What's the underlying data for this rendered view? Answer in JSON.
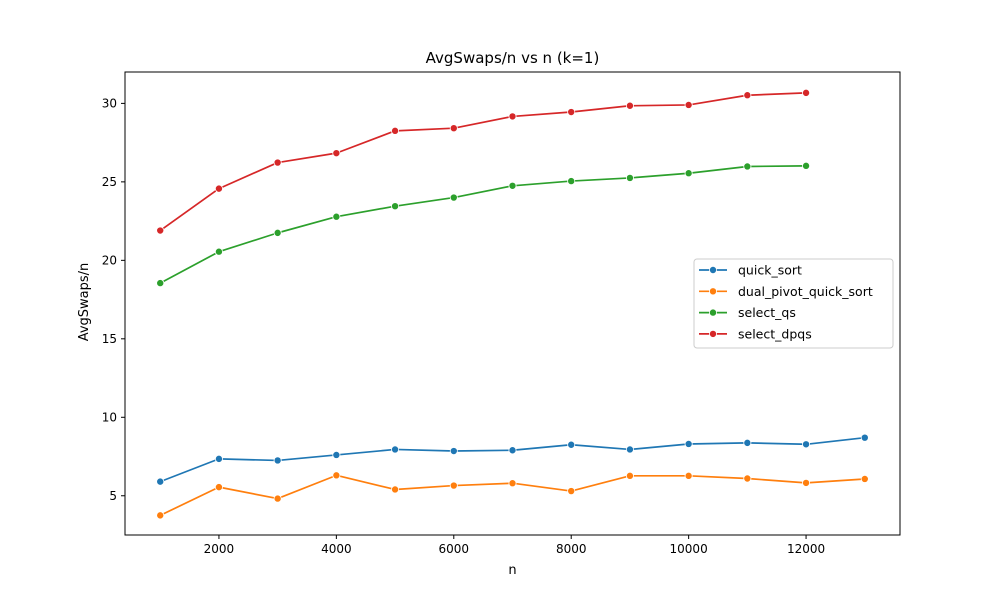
{
  "chart_data": {
    "type": "line",
    "title": "AvgSwaps/n vs n (k=1)",
    "xlabel": "n",
    "ylabel": "AvgSwaps/n",
    "xlim": [
      400,
      13600
    ],
    "ylim": [
      2.5,
      32
    ],
    "xticks": [
      2000,
      4000,
      6000,
      8000,
      10000,
      12000
    ],
    "yticks": [
      5,
      10,
      15,
      20,
      25,
      30
    ],
    "grid": false,
    "legend_position": "center-right",
    "series": [
      {
        "name": "quick_sort",
        "color": "#1f77b4",
        "marker": "circle",
        "x": [
          1000,
          2000,
          3000,
          4000,
          5000,
          6000,
          7000,
          8000,
          9000,
          10000,
          11000,
          12000,
          13000
        ],
        "y": [
          5.9,
          7.35,
          7.25,
          7.6,
          7.95,
          7.85,
          7.9,
          8.25,
          7.95,
          8.3,
          8.37,
          8.28,
          8.7
        ]
      },
      {
        "name": "dual_pivot_quick_sort",
        "color": "#ff7f0e",
        "marker": "circle",
        "x": [
          1000,
          2000,
          3000,
          4000,
          5000,
          6000,
          7000,
          8000,
          9000,
          10000,
          11000,
          12000,
          13000
        ],
        "y": [
          3.75,
          5.55,
          4.82,
          6.3,
          5.4,
          5.65,
          5.8,
          5.3,
          6.27,
          6.27,
          6.1,
          5.82,
          6.07
        ]
      },
      {
        "name": "select_qs",
        "color": "#2ca02c",
        "marker": "circle",
        "x": [
          1000,
          2000,
          3000,
          4000,
          5000,
          6000,
          7000,
          8000,
          9000,
          10000,
          11000,
          12000
        ],
        "y": [
          18.55,
          20.55,
          21.75,
          22.78,
          23.45,
          24.0,
          24.75,
          25.05,
          25.25,
          25.55,
          25.98,
          26.02
        ]
      },
      {
        "name": "select_dpqs",
        "color": "#d62728",
        "marker": "circle",
        "x": [
          1000,
          2000,
          3000,
          4000,
          5000,
          6000,
          7000,
          8000,
          9000,
          10000,
          11000,
          12000
        ],
        "y": [
          21.9,
          24.57,
          26.23,
          26.83,
          28.25,
          28.42,
          29.17,
          29.45,
          29.85,
          29.9,
          30.52,
          30.67
        ]
      }
    ]
  }
}
